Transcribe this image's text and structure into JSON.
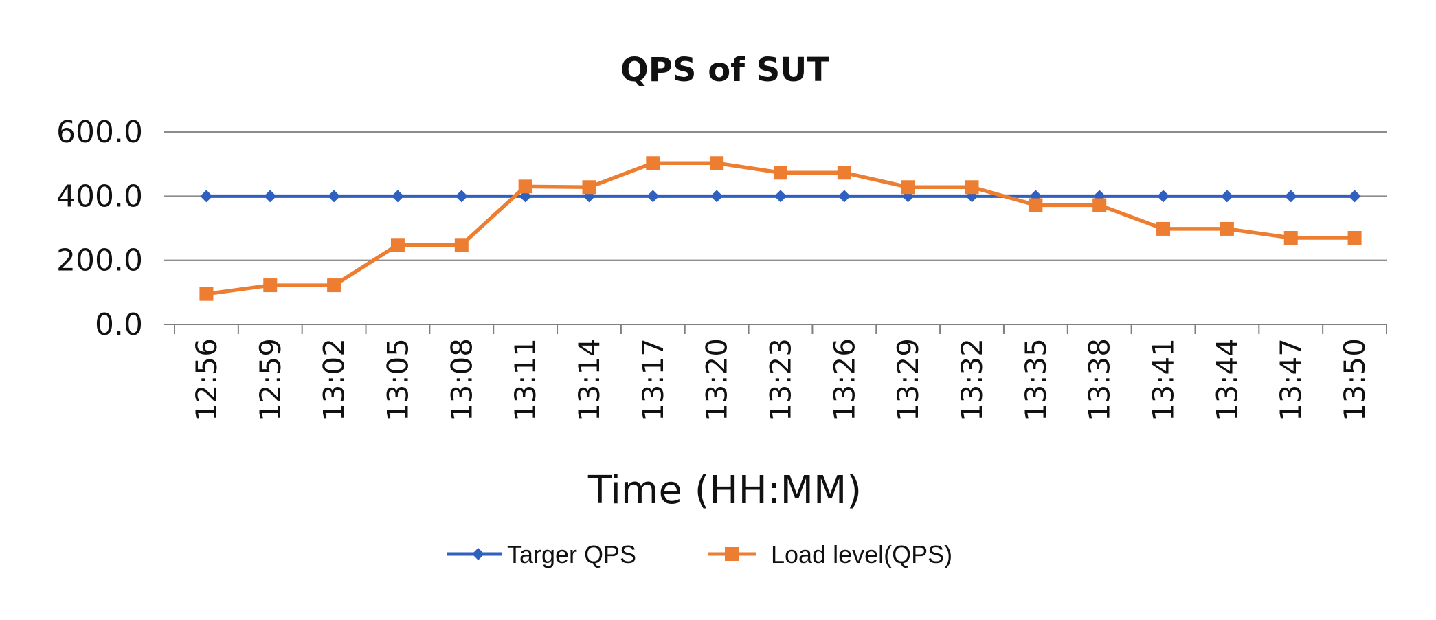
{
  "chart_data": {
    "type": "line",
    "title": "QPS of SUT",
    "xlabel": "Time (HH:MM)",
    "ylabel": "",
    "ylim": [
      0,
      600
    ],
    "yticks": [
      0,
      200,
      400,
      600
    ],
    "ytick_labels": [
      "0.0",
      "200.0",
      "400.0",
      "600.0"
    ],
    "grid": true,
    "legend_position": "bottom",
    "categories": [
      "12:56",
      "12:59",
      "13:02",
      "13:05",
      "13:08",
      "13:11",
      "13:14",
      "13:17",
      "13:20",
      "13:23",
      "13:26",
      "13:29",
      "13:32",
      "13:35",
      "13:38",
      "13:41",
      "13:44",
      "13:47",
      "13:50"
    ],
    "series": [
      {
        "name": "Targer QPS",
        "color": "#2F5FBF",
        "marker": "diamond",
        "values": [
          400,
          400,
          400,
          400,
          400,
          400,
          400,
          400,
          400,
          400,
          400,
          400,
          400,
          400,
          400,
          400,
          400,
          400,
          400
        ]
      },
      {
        "name": "Load level(QPS)",
        "color": "#ED7D31",
        "marker": "square",
        "values": [
          95,
          122,
          122,
          248,
          248,
          430,
          428,
          503,
          503,
          473,
          473,
          428,
          428,
          372,
          372,
          298,
          298,
          270,
          270
        ]
      }
    ]
  }
}
